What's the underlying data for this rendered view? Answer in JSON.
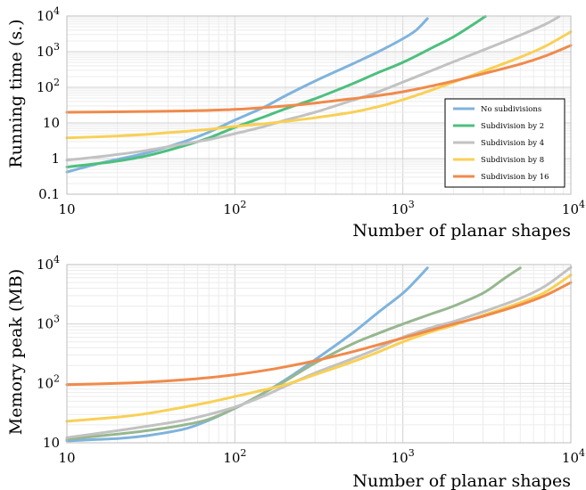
{
  "chart_data": [
    {
      "type": "line",
      "xlabel": "Number of planar shapes",
      "ylabel": "Running time (s.)",
      "xscale": "log",
      "yscale": "log",
      "xlim": [
        10,
        10000
      ],
      "ylim": [
        0.1,
        10000
      ],
      "grid": true,
      "legend_position": "right",
      "x_ticks": [
        {
          "value": 10,
          "base": "10",
          "exp": ""
        },
        {
          "value": 100,
          "base": "10",
          "exp": "2"
        },
        {
          "value": 1000,
          "base": "10",
          "exp": "3"
        },
        {
          "value": 10000,
          "base": "10",
          "exp": "4"
        }
      ],
      "y_ticks": [
        {
          "value": 0.1,
          "base": "0.1",
          "exp": ""
        },
        {
          "value": 1,
          "base": "1",
          "exp": ""
        },
        {
          "value": 10,
          "base": "10",
          "exp": ""
        },
        {
          "value": 100,
          "base": "10",
          "exp": "2"
        },
        {
          "value": 1000,
          "base": "10",
          "exp": "3"
        },
        {
          "value": 10000,
          "base": "10",
          "exp": "4"
        }
      ],
      "series": [
        {
          "name": "No subdivisions",
          "color": "#7fb3dc",
          "points": [
            [
              10,
              0.42
            ],
            [
              15,
              0.7
            ],
            [
              20,
              0.95
            ],
            [
              30,
              1.45
            ],
            [
              50,
              3
            ],
            [
              70,
              5.5
            ],
            [
              100,
              12
            ],
            [
              150,
              28
            ],
            [
              200,
              58
            ],
            [
              300,
              150
            ],
            [
              500,
              450
            ],
            [
              700,
              950
            ],
            [
              1000,
              2300
            ],
            [
              1200,
              4000
            ],
            [
              1400,
              8500
            ]
          ]
        },
        {
          "name": "Subdivision by 2",
          "color": "#4dbf7e",
          "points": [
            [
              10,
              0.58
            ],
            [
              15,
              0.72
            ],
            [
              20,
              0.85
            ],
            [
              30,
              1.2
            ],
            [
              50,
              2.3
            ],
            [
              70,
              3.8
            ],
            [
              100,
              7.5
            ],
            [
              150,
              15
            ],
            [
              200,
              25
            ],
            [
              300,
              48
            ],
            [
              500,
              125
            ],
            [
              700,
              250
            ],
            [
              1000,
              500
            ],
            [
              1500,
              1300
            ],
            [
              2000,
              2600
            ],
            [
              2500,
              5000
            ],
            [
              3100,
              9800
            ]
          ]
        },
        {
          "name": "Subdivision by 4",
          "color": "#c2c2c2",
          "points": [
            [
              10,
              0.9
            ],
            [
              20,
              1.3
            ],
            [
              30,
              1.7
            ],
            [
              50,
              2.6
            ],
            [
              70,
              3.4
            ],
            [
              100,
              5
            ],
            [
              150,
              8
            ],
            [
              200,
              12
            ],
            [
              300,
              20
            ],
            [
              500,
              43
            ],
            [
              700,
              72
            ],
            [
              1000,
              140
            ],
            [
              1500,
              300
            ],
            [
              2000,
              520
            ],
            [
              3000,
              1100
            ],
            [
              5000,
              2900
            ],
            [
              7000,
              5800
            ],
            [
              8500,
              9600
            ]
          ]
        },
        {
          "name": "Subdivision by 8",
          "color": "#f8d055",
          "points": [
            [
              10,
              3.8
            ],
            [
              20,
              4.3
            ],
            [
              30,
              4.8
            ],
            [
              50,
              5.8
            ],
            [
              70,
              6.6
            ],
            [
              100,
              8
            ],
            [
              150,
              9.5
            ],
            [
              200,
              11
            ],
            [
              300,
              14
            ],
            [
              500,
              20
            ],
            [
              700,
              28
            ],
            [
              1000,
              45
            ],
            [
              1500,
              85
            ],
            [
              2000,
              140
            ],
            [
              3000,
              280
            ],
            [
              5000,
              700
            ],
            [
              7000,
              1400
            ],
            [
              10000,
              3600
            ]
          ]
        },
        {
          "name": "Subdivision by 16",
          "color": "#f08a4b",
          "points": [
            [
              10,
              20
            ],
            [
              20,
              20.5
            ],
            [
              30,
              21
            ],
            [
              50,
              21.8
            ],
            [
              70,
              22.5
            ],
            [
              100,
              24
            ],
            [
              150,
              27
            ],
            [
              200,
              30
            ],
            [
              300,
              36
            ],
            [
              500,
              48
            ],
            [
              700,
              58
            ],
            [
              1000,
              75
            ],
            [
              1500,
              110
            ],
            [
              2000,
              150
            ],
            [
              3000,
              240
            ],
            [
              5000,
              450
            ],
            [
              7000,
              750
            ],
            [
              10000,
              1500
            ]
          ]
        }
      ]
    },
    {
      "type": "line",
      "xlabel": "Number of planar shapes",
      "ylabel": "Memory peak (MB)",
      "xscale": "log",
      "yscale": "log",
      "xlim": [
        10,
        10000
      ],
      "ylim": [
        10,
        10000
      ],
      "grid": true,
      "x_ticks": [
        {
          "value": 10,
          "base": "10",
          "exp": ""
        },
        {
          "value": 100,
          "base": "10",
          "exp": "2"
        },
        {
          "value": 1000,
          "base": "10",
          "exp": "3"
        },
        {
          "value": 10000,
          "base": "10",
          "exp": "4"
        }
      ],
      "y_ticks": [
        {
          "value": 10,
          "base": "10",
          "exp": ""
        },
        {
          "value": 100,
          "base": "10",
          "exp": "2"
        },
        {
          "value": 1000,
          "base": "10",
          "exp": "3"
        },
        {
          "value": 10000,
          "base": "10",
          "exp": "4"
        }
      ],
      "series": [
        {
          "color": "#7fb3dc",
          "points": [
            [
              10,
              10.8
            ],
            [
              20,
              11.8
            ],
            [
              30,
              13.2
            ],
            [
              50,
              17
            ],
            [
              70,
              24
            ],
            [
              100,
              38
            ],
            [
              150,
              70
            ],
            [
              200,
              115
            ],
            [
              300,
              250
            ],
            [
              500,
              700
            ],
            [
              700,
              1500
            ],
            [
              1000,
              3300
            ],
            [
              1200,
              5500
            ],
            [
              1400,
              8800
            ]
          ]
        },
        {
          "color": "#97b78f",
          "points": [
            [
              10,
              11.5
            ],
            [
              20,
              14
            ],
            [
              30,
              16
            ],
            [
              50,
              20
            ],
            [
              70,
              25
            ],
            [
              100,
              38
            ],
            [
              150,
              70
            ],
            [
              200,
              110
            ],
            [
              300,
              220
            ],
            [
              500,
              460
            ],
            [
              700,
              680
            ],
            [
              1000,
              1000
            ],
            [
              1500,
              1500
            ],
            [
              2000,
              2000
            ],
            [
              3000,
              3300
            ],
            [
              4000,
              5800
            ],
            [
              5000,
              8800
            ]
          ]
        },
        {
          "color": "#c2c2c2",
          "points": [
            [
              10,
              12.2
            ],
            [
              20,
              16
            ],
            [
              30,
              19
            ],
            [
              50,
              24
            ],
            [
              70,
              30
            ],
            [
              100,
              40
            ],
            [
              150,
              62
            ],
            [
              200,
              90
            ],
            [
              300,
              150
            ],
            [
              500,
              260
            ],
            [
              700,
              380
            ],
            [
              1000,
              600
            ],
            [
              1500,
              880
            ],
            [
              2000,
              1100
            ],
            [
              3000,
              1600
            ],
            [
              5000,
              2700
            ],
            [
              7000,
              4300
            ],
            [
              10000,
              9000
            ]
          ]
        },
        {
          "color": "#f8d055",
          "points": [
            [
              10,
              23
            ],
            [
              20,
              27
            ],
            [
              30,
              31
            ],
            [
              50,
              40
            ],
            [
              70,
              48
            ],
            [
              100,
              60
            ],
            [
              150,
              78
            ],
            [
              200,
              95
            ],
            [
              300,
              140
            ],
            [
              500,
              230
            ],
            [
              700,
              330
            ],
            [
              1000,
              500
            ],
            [
              1500,
              750
            ],
            [
              2000,
              950
            ],
            [
              3000,
              1400
            ],
            [
              5000,
              2300
            ],
            [
              7000,
              3400
            ],
            [
              10000,
              6700
            ]
          ]
        },
        {
          "color": "#f08a4b",
          "points": [
            [
              10,
              95
            ],
            [
              20,
              100
            ],
            [
              30,
              105
            ],
            [
              50,
              115
            ],
            [
              70,
              125
            ],
            [
              100,
              140
            ],
            [
              150,
              165
            ],
            [
              200,
              190
            ],
            [
              300,
              240
            ],
            [
              500,
              340
            ],
            [
              700,
              440
            ],
            [
              1000,
              580
            ],
            [
              1500,
              800
            ],
            [
              2000,
              1000
            ],
            [
              3000,
              1350
            ],
            [
              5000,
              2100
            ],
            [
              7000,
              3000
            ],
            [
              10000,
              5000
            ]
          ]
        }
      ]
    }
  ]
}
